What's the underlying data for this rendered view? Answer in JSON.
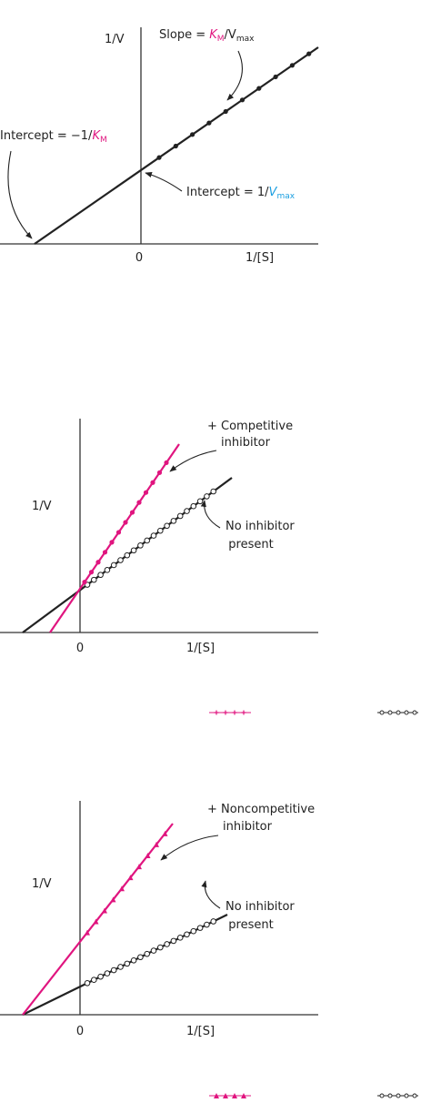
{
  "panel_1": {
    "y_axis_label": "1/V",
    "x_axis_label": "1/[S]",
    "origin": "0",
    "slope_label": [
      "Slope = ",
      "K",
      "M",
      "/V",
      "max"
    ],
    "x_intercept_label": [
      "Intercept = −1/",
      "K",
      "M"
    ],
    "y_intercept_label": [
      "Intercept = 1/",
      "V",
      "max"
    ]
  },
  "panel_2": {
    "y_axis_label": "1/V",
    "x_axis_label": "1/[S]",
    "origin": "0",
    "inhibitor_label": [
      "+ Competitive",
      "inhibitor"
    ],
    "control_label": [
      "No inhibitor",
      "present"
    ]
  },
  "panel_3": {
    "y_axis_label": "1/V",
    "x_axis_label": "1/[S]",
    "origin": "0",
    "inhibitor_label": [
      "+ Noncompetitive",
      "inhibitor"
    ],
    "control_label": [
      "No inhibitor",
      "present"
    ]
  }
}
